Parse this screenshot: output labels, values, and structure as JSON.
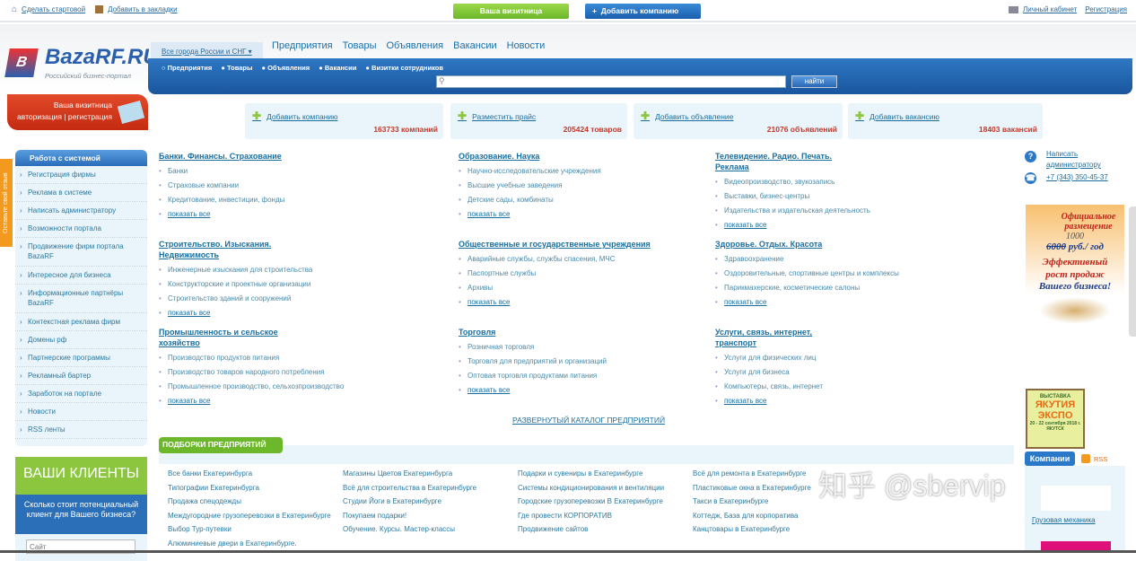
{
  "topbar": {
    "make_home": "Сделать стартовой",
    "bookmark": "Добавить в закладки",
    "vizitnica_btn": "Ваша визитница",
    "add_company_btn": "Добавить компанию",
    "cabinet": "Личный кабинет",
    "register": "Регистрация"
  },
  "header": {
    "logo_text": "BazaRF.RU",
    "logo_sub": "Российский бизнес-портал",
    "city": "Все города России и СНГ ▾",
    "nav": [
      "Предприятия",
      "Товары",
      "Объявления",
      "Вакансии",
      "Новости"
    ],
    "radios": [
      "Предприятия",
      "Товары",
      "Объявления",
      "Вакансии",
      "Визитки сотрудников"
    ],
    "search_placeholder": "",
    "search_btn": "найти"
  },
  "vizitnica": {
    "title": "Ваша визитница",
    "links": "авторизация | регистрация"
  },
  "stats": [
    {
      "label": "Добавить компанию",
      "count": "163733 компаний"
    },
    {
      "label": "Разместить прайс",
      "count": "205424 товаров"
    },
    {
      "label": "Добавить объявление",
      "count": "21076 объявлений"
    },
    {
      "label": "Добавить вакансию",
      "count": "18403 вакансий"
    }
  ],
  "feedback": "Оставьте свой отзыв",
  "sidebar": {
    "title": "Работа с системой",
    "items": [
      "Регистрация фирмы",
      "Реклама в системе",
      "Написать администратору",
      "Возможности портала",
      "Продвижение фирм портала BazaRF",
      "Интересное для бизнеса",
      "Информационные партнёры BazaRF",
      "Контекстная реклама фирм",
      "Домены рф",
      "Партнерские программы",
      "Рекламный бартер",
      "Заработок на портале",
      "Новости",
      "RSS ленты"
    ]
  },
  "clients": {
    "title": "ВАШИ КЛИЕНТЫ",
    "text": "Сколько стоит потенциальный клиент для Вашего бизнеса?",
    "input_placeholder": "Сайт"
  },
  "categories": [
    {
      "title": "Банки. Финансы. Страхование",
      "items": [
        "Банки",
        "Страховые компании",
        "Кредитование, инвестиции, фонды"
      ]
    },
    {
      "title": "Образование. Наука",
      "items": [
        "Научно-исследовательские учреждения",
        "Высшие учебные заведения",
        "Детские сады, комбинаты"
      ]
    },
    {
      "title": "Телевидение. Радио. Печать. Реклама",
      "items": [
        "Видеопроизводство, звукозапись",
        "Выставки, бизнес-центры",
        "Издательства и издательская деятельность"
      ]
    },
    {
      "title": "Строительство. Изыскания. Недвижимость",
      "items": [
        "Инженерные изыскания для строительства",
        "Конструкторские и проектные организации",
        "Строительство зданий и сооружений"
      ]
    },
    {
      "title": "Общественные и государственные учреждения",
      "items": [
        "Аварийные службы, службы спасения, МЧС",
        "Паспортные службы",
        "Архивы"
      ]
    },
    {
      "title": "Здоровье. Отдых. Красота",
      "items": [
        "Здравоохранение",
        "Оздоровительные, спортивные центры и комплексы",
        "Парикмахерские, косметические салоны"
      ]
    },
    {
      "title": "Промышленность и сельское хозяйство",
      "items": [
        "Производство продуктов питания",
        "Производство товаров народного потребления",
        "Промышленное производство, сельхозпроизводство"
      ]
    },
    {
      "title": "Торговля",
      "items": [
        "Розничная торговля",
        "Торговля для предприятий и организаций",
        "Оптовая торговля продуктами питания"
      ]
    },
    {
      "title": "Услуги, связь, интернет, транспорт",
      "items": [
        "Услуги для физических лиц",
        "Услуги для бизнеса",
        "Компьютеры, связь, интернет"
      ]
    }
  ],
  "show_all": "показать все",
  "full_catalog": "РАЗВЕРНУТЫЙ КАТАЛОГ ПРЕДПРИЯТИЙ",
  "selections": {
    "title": "ПОДБОРКИ ПРЕДПРИЯТИЙ",
    "columns": [
      [
        "Все банки Екатеринбурга",
        "Типографии Екатеринбурга",
        "Продажа спецодежды",
        "Междугородние грузоперевозки в Екатеринбурге",
        "Выбор Тур-путевки",
        "Алюминиевые двери в Екатеринбурге."
      ],
      [
        "Магазины Цветов Екатеринбурга",
        "Всё для строительства в Екатеринбурге",
        "Студии Йоги в Екатеринбурге",
        "Покупаем подарки!",
        "Обучение. Курсы. Мастер-классы"
      ],
      [
        "Подарки и сувениры в Екатеринбурге",
        "Системы кондиционирования и вентиляции",
        "Городские грузоперевозки В Екатеринбурге",
        "Где провести КОРПОРАТИВ",
        "Продвижение сайтов"
      ],
      [
        "Всё для ремонта в Екатеринбурге",
        "Пластиковые окна в Екатеринбурге",
        "Такси в Екатеринбурге",
        "Коттедж, База для корпоратива",
        "Канцтовары в Екатеринбурге"
      ]
    ]
  },
  "right": {
    "write_admin": "Написать администратору",
    "phone": "+7 (343) 350-45-37",
    "ad": {
      "l1": "Официальное размещение",
      "old_price": "6000",
      "new_price": "1000",
      "unit": "руб./ год",
      "l2": "Эффективный рост продаж",
      "l3": "Вашего бизнеса!"
    },
    "expo": {
      "l1": "ВЫСТАВКА",
      "l2": "ЯКУТИЯ ЭКСПО",
      "l3": "20 - 22 сентября 2018 г. ЯКУТСК"
    },
    "companies_tab": "Компании",
    "rss": "RSS",
    "company_link": "Грузовая механика"
  },
  "watermark": "知乎 @sbervip"
}
